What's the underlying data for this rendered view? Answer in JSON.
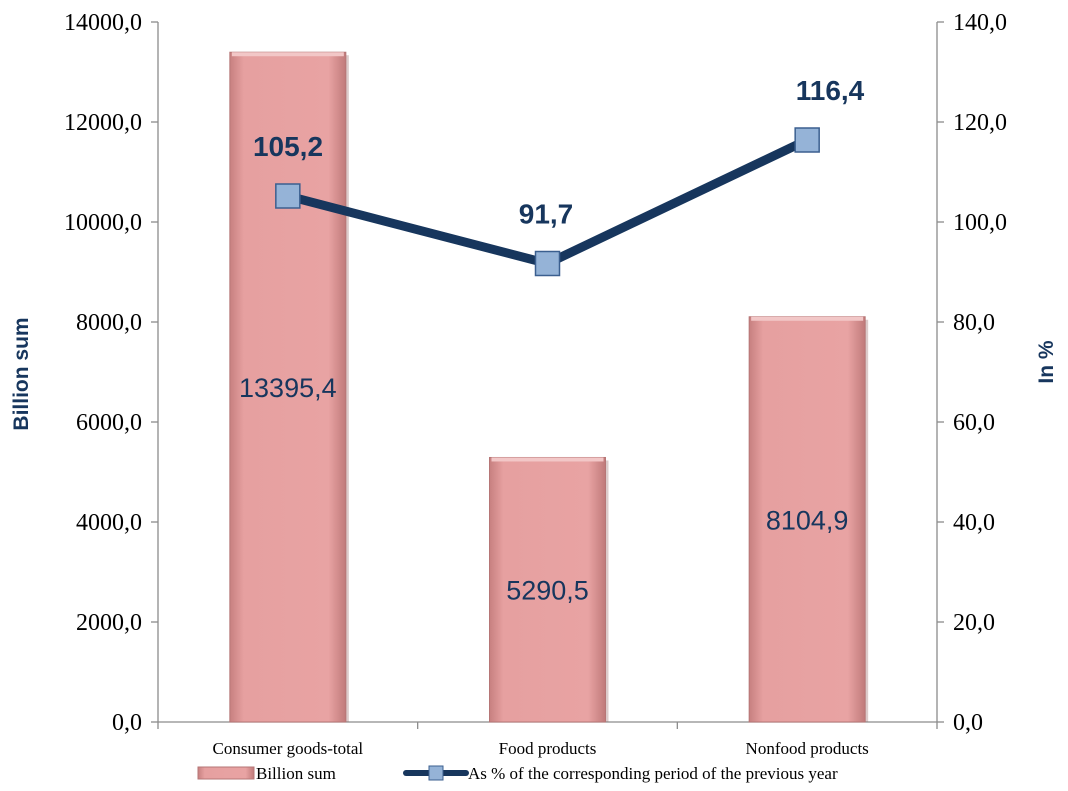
{
  "chart_data": {
    "type": "bar",
    "combo": "bar+line, secondary y-axis",
    "categories": [
      "Consumer goods-total",
      "Food products",
      "Nonfood products"
    ],
    "series": [
      {
        "name": "Billion sum",
        "type": "bar",
        "axis": "left",
        "values": [
          13395.4,
          5290.5,
          8104.9
        ],
        "value_labels": [
          "13395,4",
          "5290,5",
          "8104,9"
        ],
        "color": "#e6a0a0"
      },
      {
        "name": "As % of the corresponding period of the previous year",
        "type": "line",
        "axis": "right",
        "values": [
          105.2,
          91.7,
          116.4
        ],
        "value_labels": [
          "105,2",
          "91,7",
          "116,4"
        ],
        "color": "#17365d",
        "marker_color": "#95b3d7"
      }
    ],
    "ylabel": "Billion sum",
    "y2label": "In %",
    "ylim": [
      0,
      14000
    ],
    "y2lim": [
      0,
      140
    ],
    "y_ticks": [
      "0,0",
      "2000,0",
      "4000,0",
      "6000,0",
      "8000,0",
      "10000,0",
      "12000,0",
      "14000,0"
    ],
    "y2_ticks": [
      "0,0",
      "20,0",
      "40,0",
      "60,0",
      "80,0",
      "100,0",
      "120,0",
      "140,0"
    ],
    "grid": false,
    "legend_position": "bottom",
    "axis_title_color": "#17365d",
    "bar_label_color": "#17365d"
  }
}
